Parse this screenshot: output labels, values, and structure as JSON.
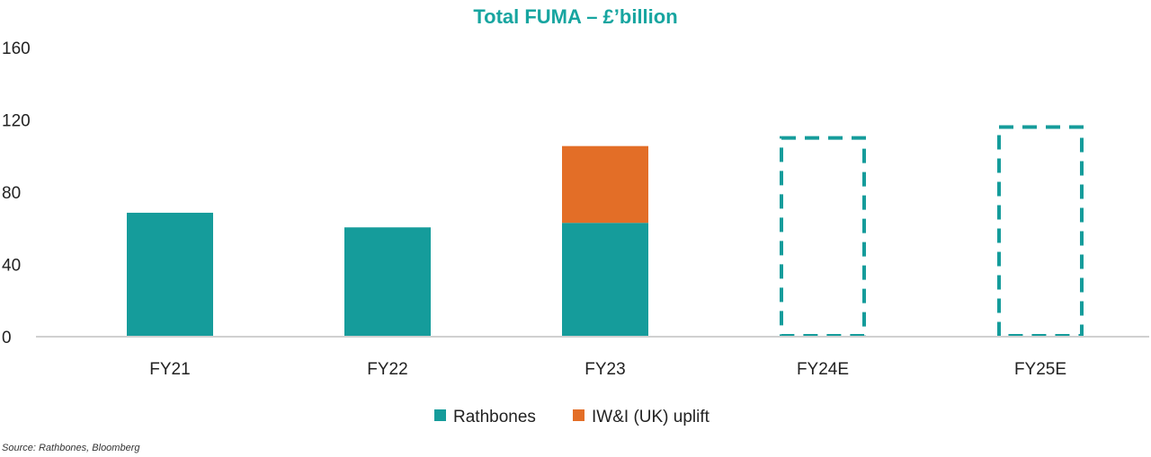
{
  "chart_data": {
    "type": "bar",
    "stacked": true,
    "title": "Total FUMA – £’billion",
    "xlabel": "",
    "ylabel": "",
    "ylim": [
      0,
      160
    ],
    "yticks": [
      0,
      40,
      80,
      120,
      160
    ],
    "categories": [
      "FY21",
      "FY22",
      "FY23",
      "FY24E",
      "FY25E"
    ],
    "series": [
      {
        "name": "Rathbones",
        "color": "#159c9b",
        "values": [
          68.6,
          60.5,
          63,
          null,
          null
        ]
      },
      {
        "name": "IW&I (UK) uplift",
        "color": "#e36e27",
        "values": [
          null,
          null,
          42.5,
          null,
          null
        ]
      }
    ],
    "estimates": {
      "style": "dashed-outline",
      "color": "#159c9b",
      "categories": [
        "FY24E",
        "FY25E"
      ],
      "values": [
        110,
        116
      ]
    },
    "legend": {
      "position": "bottom-center"
    },
    "grid": false,
    "colors": {
      "title": "#17a5a0",
      "axis": "#d0d0d0"
    }
  },
  "source": "Source: Rathbones, Bloomberg"
}
